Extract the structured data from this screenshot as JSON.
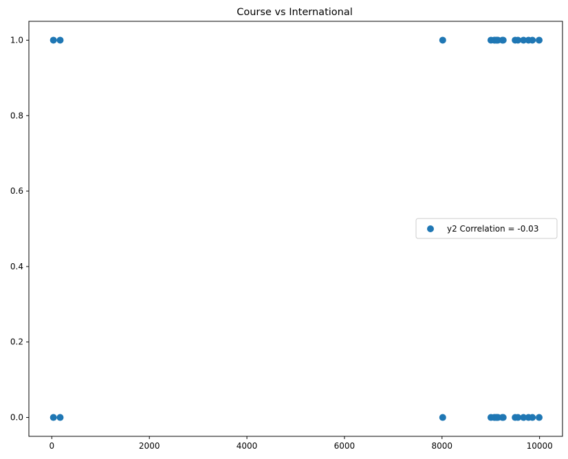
{
  "chart_data": {
    "type": "scatter",
    "title": "Course vs International",
    "xlabel": "",
    "ylabel": "",
    "xlim": [
      -470,
      10470
    ],
    "ylim": [
      -0.05,
      1.05
    ],
    "x_ticks": [
      0,
      2000,
      4000,
      6000,
      8000,
      10000
    ],
    "x_tick_labels": [
      "0",
      "2000",
      "4000",
      "6000",
      "8000",
      "10000"
    ],
    "y_ticks": [
      0.0,
      0.2,
      0.4,
      0.6,
      0.8,
      1.0
    ],
    "y_tick_labels": [
      "0.0",
      "0.2",
      "0.4",
      "0.6",
      "0.8",
      "1.0"
    ],
    "grid": false,
    "legend_position": "center-right",
    "series": [
      {
        "name": "y2 Correlation = -0.03",
        "color": "#1f77b4",
        "points": [
          {
            "x": 33,
            "y": 1
          },
          {
            "x": 171,
            "y": 1
          },
          {
            "x": 8014,
            "y": 1
          },
          {
            "x": 9003,
            "y": 1
          },
          {
            "x": 9070,
            "y": 1
          },
          {
            "x": 9085,
            "y": 1
          },
          {
            "x": 9119,
            "y": 1
          },
          {
            "x": 9130,
            "y": 1
          },
          {
            "x": 9147,
            "y": 1
          },
          {
            "x": 9238,
            "y": 1
          },
          {
            "x": 9254,
            "y": 1
          },
          {
            "x": 9500,
            "y": 1
          },
          {
            "x": 9556,
            "y": 1
          },
          {
            "x": 9670,
            "y": 1
          },
          {
            "x": 9773,
            "y": 1
          },
          {
            "x": 9853,
            "y": 1
          },
          {
            "x": 9991,
            "y": 1
          },
          {
            "x": 33,
            "y": 0
          },
          {
            "x": 171,
            "y": 0
          },
          {
            "x": 8014,
            "y": 0
          },
          {
            "x": 9003,
            "y": 0
          },
          {
            "x": 9070,
            "y": 0
          },
          {
            "x": 9085,
            "y": 0
          },
          {
            "x": 9119,
            "y": 0
          },
          {
            "x": 9130,
            "y": 0
          },
          {
            "x": 9147,
            "y": 0
          },
          {
            "x": 9238,
            "y": 0
          },
          {
            "x": 9254,
            "y": 0
          },
          {
            "x": 9500,
            "y": 0
          },
          {
            "x": 9556,
            "y": 0
          },
          {
            "x": 9670,
            "y": 0
          },
          {
            "x": 9773,
            "y": 0
          },
          {
            "x": 9853,
            "y": 0
          },
          {
            "x": 9991,
            "y": 0
          }
        ]
      }
    ]
  }
}
